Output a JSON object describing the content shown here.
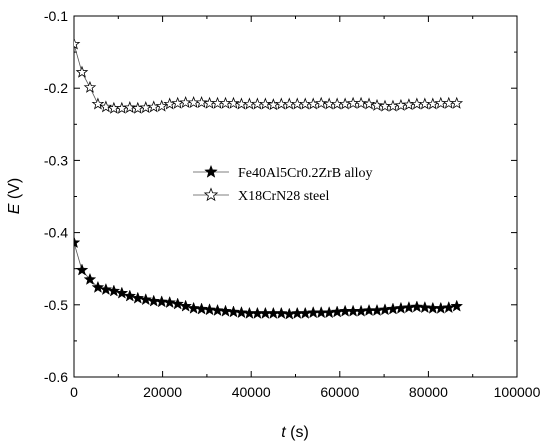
{
  "chart_data": {
    "type": "scatter",
    "xlabel": {
      "var": "t",
      "unit": " (s)"
    },
    "ylabel": {
      "var": "E",
      "unit": " (V)"
    },
    "xlim": [
      0,
      100000
    ],
    "ylim": [
      -0.6,
      -0.1
    ],
    "x_ticks": [
      0,
      20000,
      40000,
      60000,
      80000,
      100000
    ],
    "x_tick_labels": [
      "0",
      "20000",
      "40000",
      "60000",
      "80000",
      "100000"
    ],
    "y_ticks": [
      -0.6,
      -0.5,
      -0.4,
      -0.3,
      -0.2,
      -0.1
    ],
    "y_tick_labels": [
      "-0.6",
      "-0.5",
      "-0.4",
      "-0.3",
      "-0.2",
      "-0.1"
    ],
    "grid": false,
    "legend_position": "center-right",
    "series": [
      {
        "name": "Fe40Al5Cr0.2ZrB alloy",
        "marker": "filled-star",
        "color": "#000000",
        "x": [
          0,
          1800,
          3600,
          5400,
          7200,
          9000,
          10800,
          12600,
          14400,
          16200,
          18000,
          19800,
          21600,
          23400,
          25200,
          27000,
          28800,
          30600,
          32400,
          34200,
          36000,
          37800,
          39600,
          41400,
          43200,
          45000,
          46800,
          48600,
          50400,
          52200,
          54000,
          55800,
          57600,
          59400,
          61200,
          63000,
          64800,
          66600,
          68400,
          70200,
          72000,
          73800,
          75600,
          77400,
          79200,
          81000,
          82800,
          84600,
          86400
        ],
        "y": [
          -0.414,
          -0.452,
          -0.465,
          -0.476,
          -0.479,
          -0.481,
          -0.484,
          -0.488,
          -0.491,
          -0.493,
          -0.495,
          -0.496,
          -0.497,
          -0.499,
          -0.502,
          -0.505,
          -0.506,
          -0.507,
          -0.508,
          -0.509,
          -0.51,
          -0.511,
          -0.512,
          -0.512,
          -0.512,
          -0.512,
          -0.512,
          -0.513,
          -0.512,
          -0.512,
          -0.511,
          -0.511,
          -0.511,
          -0.51,
          -0.509,
          -0.509,
          -0.509,
          -0.508,
          -0.508,
          -0.507,
          -0.506,
          -0.505,
          -0.504,
          -0.503,
          -0.504,
          -0.505,
          -0.505,
          -0.504,
          -0.502
        ]
      },
      {
        "name": "X18CrN28 steel",
        "marker": "open-star",
        "color": "#000000",
        "x": [
          0,
          1800,
          3600,
          5400,
          7200,
          9000,
          10800,
          12600,
          14400,
          16200,
          18000,
          19800,
          21600,
          23400,
          25200,
          27000,
          28800,
          30600,
          32400,
          34200,
          36000,
          37800,
          39600,
          41400,
          43200,
          45000,
          46800,
          48600,
          50400,
          52200,
          54000,
          55800,
          57600,
          59400,
          61200,
          63000,
          64800,
          66600,
          68400,
          70200,
          72000,
          73800,
          75600,
          77400,
          79200,
          81000,
          82800,
          84600,
          86400
        ],
        "y": [
          -0.139,
          -0.178,
          -0.199,
          -0.222,
          -0.226,
          -0.228,
          -0.228,
          -0.227,
          -0.228,
          -0.227,
          -0.226,
          -0.225,
          -0.222,
          -0.221,
          -0.22,
          -0.22,
          -0.22,
          -0.221,
          -0.221,
          -0.221,
          -0.221,
          -0.222,
          -0.222,
          -0.222,
          -0.222,
          -0.223,
          -0.222,
          -0.222,
          -0.222,
          -0.222,
          -0.222,
          -0.221,
          -0.222,
          -0.222,
          -0.222,
          -0.221,
          -0.221,
          -0.222,
          -0.224,
          -0.225,
          -0.225,
          -0.224,
          -0.223,
          -0.222,
          -0.222,
          -0.222,
          -0.221,
          -0.221,
          -0.221
        ]
      }
    ]
  }
}
